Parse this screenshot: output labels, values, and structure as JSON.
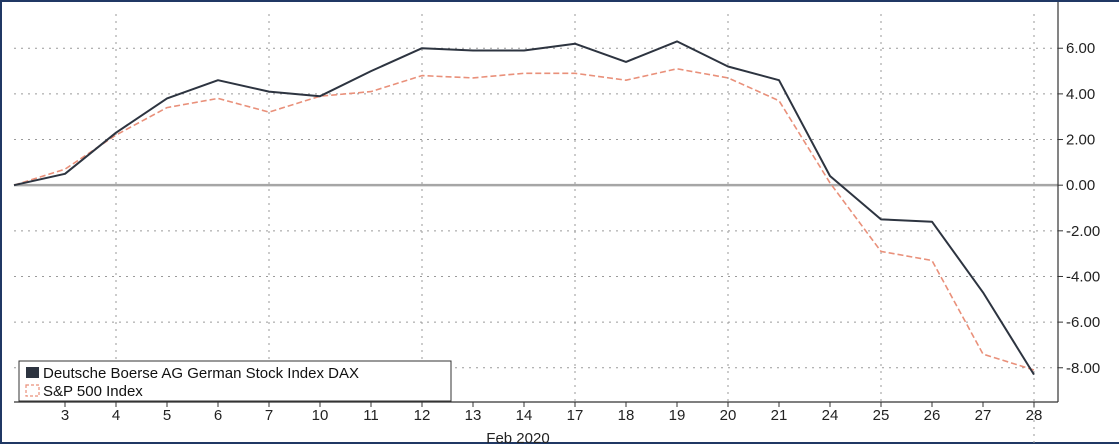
{
  "chart_data": {
    "type": "line",
    "categories": [
      "3",
      "4",
      "5",
      "6",
      "7",
      "10",
      "11",
      "12",
      "13",
      "14",
      "17",
      "18",
      "19",
      "20",
      "21",
      "24",
      "25",
      "26",
      "27",
      "28"
    ],
    "xlabel": "Feb 2020",
    "ylim": [
      -9.5,
      7.5
    ],
    "y_ticks": [
      6,
      4,
      2,
      0,
      -2,
      -4,
      -6,
      -8
    ],
    "y_tick_labels": [
      "6.00",
      "4.00",
      "2.00",
      "0.00",
      "-2.00",
      "-4.00",
      "-6.00",
      "-8.00"
    ],
    "grid": true,
    "legend_position": "bottom-left",
    "series": [
      {
        "name": "Deutsche Boerse AG German Stock Index DAX",
        "color": "#2d3440",
        "style": "solid",
        "start": 0,
        "values": [
          0.5,
          2.3,
          3.8,
          4.6,
          4.1,
          3.9,
          5.0,
          6.0,
          5.9,
          5.9,
          6.2,
          5.4,
          6.3,
          5.2,
          4.6,
          0.4,
          -1.5,
          -1.6,
          -4.7,
          -8.3
        ]
      },
      {
        "name": "S&P 500 Index",
        "color": "#e9907a",
        "style": "dashed",
        "start": 0,
        "values": [
          0.7,
          2.2,
          3.4,
          3.8,
          3.2,
          3.9,
          4.1,
          4.8,
          4.7,
          4.9,
          4.9,
          4.6,
          5.1,
          4.7,
          3.7,
          0.1,
          -2.9,
          -3.3,
          -7.4,
          -8.1
        ]
      }
    ]
  }
}
